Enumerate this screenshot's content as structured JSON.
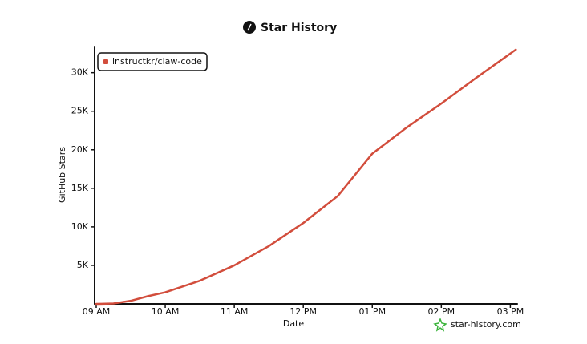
{
  "chart_data": {
    "type": "line",
    "title": "Star History",
    "xlabel": "Date",
    "ylabel": "GitHub Stars",
    "watermark": "star-history.com",
    "x": [
      9,
      9.25,
      9.5,
      9.75,
      10,
      10.5,
      11,
      11.5,
      12,
      12.5,
      13,
      13.5,
      14,
      14.5,
      15.08
    ],
    "series": [
      {
        "name": "instructkr/claw-code",
        "color": "#d24d3c",
        "values": [
          0,
          50,
          400,
          1000,
          1500,
          3000,
          5000,
          7500,
          10500,
          14000,
          19500,
          22900,
          26000,
          29300,
          33000
        ]
      }
    ],
    "xlim": [
      9,
      15.1
    ],
    "ylim": [
      0,
      33400
    ],
    "xticks": [
      {
        "value": 9,
        "label": "09 AM"
      },
      {
        "value": 10,
        "label": "10 AM"
      },
      {
        "value": 11,
        "label": "11 AM"
      },
      {
        "value": 12,
        "label": "12 PM"
      },
      {
        "value": 13,
        "label": "01 PM"
      },
      {
        "value": 14,
        "label": "02 PM"
      },
      {
        "value": 15,
        "label": "03 PM"
      }
    ],
    "yticks": [
      {
        "value": 5000,
        "label": "5K"
      },
      {
        "value": 10000,
        "label": "10K"
      },
      {
        "value": 15000,
        "label": "15K"
      },
      {
        "value": 20000,
        "label": "20K"
      },
      {
        "value": 25000,
        "label": "25K"
      },
      {
        "value": 30000,
        "label": "30K"
      }
    ],
    "legend": "top-left"
  }
}
